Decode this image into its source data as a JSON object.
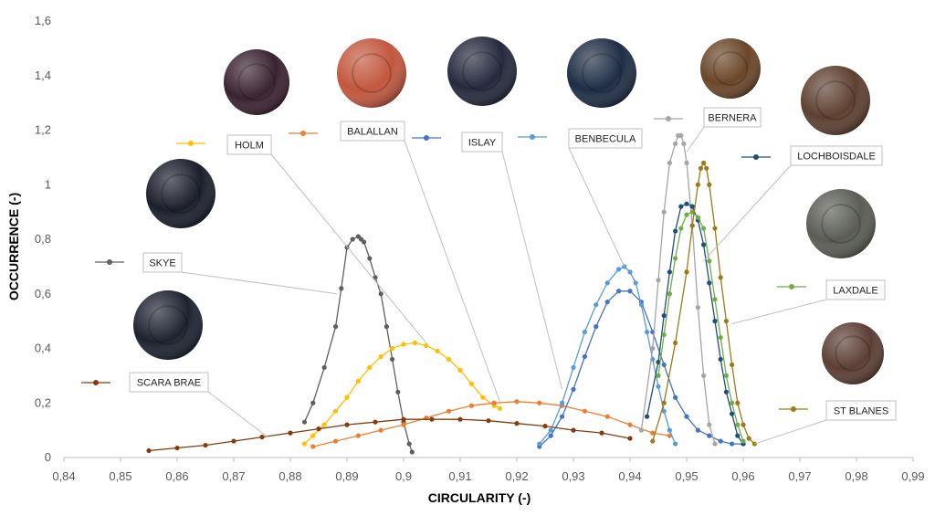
{
  "chart_data": {
    "type": "line",
    "title": "",
    "xlabel": "CIRCULARITY (-)",
    "ylabel": "OCCURRENCE (-)",
    "xlim": [
      0.84,
      0.99
    ],
    "ylim": [
      0,
      1.6
    ],
    "x_ticks": [
      "0,84",
      "0,85",
      "0,86",
      "0,87",
      "0,88",
      "0,89",
      "0,9",
      "0,91",
      "0,92",
      "0,93",
      "0,94",
      "0,95",
      "0,96",
      "0,97",
      "0,98",
      "0,99"
    ],
    "y_ticks": [
      "0",
      "0,2",
      "0,4",
      "0,6",
      "0,8",
      "1",
      "1,2",
      "1,4",
      "1,6"
    ],
    "grid": false,
    "series": [
      {
        "name": "SKYE",
        "color": "#5f5f5f",
        "x": [
          0.8825,
          0.884,
          0.886,
          0.888,
          0.889,
          0.89,
          0.891,
          0.892,
          0.8925,
          0.893,
          0.894,
          0.895,
          0.896,
          0.897,
          0.898,
          0.899,
          0.9,
          0.901,
          0.9015
        ],
        "y": [
          0.13,
          0.2,
          0.33,
          0.48,
          0.62,
          0.77,
          0.8,
          0.81,
          0.8,
          0.79,
          0.73,
          0.66,
          0.6,
          0.48,
          0.36,
          0.24,
          0.13,
          0.05,
          0.02
        ]
      },
      {
        "name": "HOLM",
        "color": "#ffc000",
        "x": [
          0.8825,
          0.884,
          0.886,
          0.888,
          0.89,
          0.892,
          0.894,
          0.896,
          0.898,
          0.9,
          0.902,
          0.904,
          0.906,
          0.908,
          0.91,
          0.912,
          0.914,
          0.916,
          0.917
        ],
        "y": [
          0.05,
          0.08,
          0.12,
          0.17,
          0.22,
          0.28,
          0.33,
          0.37,
          0.4,
          0.415,
          0.42,
          0.41,
          0.39,
          0.36,
          0.32,
          0.27,
          0.22,
          0.19,
          0.18
        ]
      },
      {
        "name": "BALALLAN",
        "color": "#ed7d31",
        "x": [
          0.884,
          0.888,
          0.892,
          0.896,
          0.9,
          0.904,
          0.908,
          0.912,
          0.916,
          0.92,
          0.924,
          0.928,
          0.932,
          0.936,
          0.94,
          0.944,
          0.947
        ],
        "y": [
          0.04,
          0.06,
          0.08,
          0.1,
          0.12,
          0.145,
          0.17,
          0.19,
          0.2,
          0.205,
          0.2,
          0.19,
          0.17,
          0.15,
          0.12,
          0.09,
          0.08
        ]
      },
      {
        "name": "ISLAY",
        "color": "#4472c4",
        "x": [
          0.924,
          0.926,
          0.928,
          0.93,
          0.932,
          0.934,
          0.936,
          0.938,
          0.94,
          0.942,
          0.944,
          0.946,
          0.948,
          0.95,
          0.952,
          0.954,
          0.956,
          0.958,
          0.96
        ],
        "y": [
          0.04,
          0.08,
          0.15,
          0.25,
          0.37,
          0.48,
          0.57,
          0.61,
          0.61,
          0.57,
          0.46,
          0.34,
          0.22,
          0.15,
          0.1,
          0.08,
          0.06,
          0.05,
          0.05
        ]
      },
      {
        "name": "BENBECULA",
        "color": "#5b9bd5",
        "x": [
          0.924,
          0.926,
          0.928,
          0.93,
          0.932,
          0.934,
          0.936,
          0.938,
          0.939,
          0.94,
          0.941,
          0.942,
          0.943,
          0.944,
          0.945,
          0.946,
          0.947,
          0.948
        ],
        "y": [
          0.05,
          0.1,
          0.2,
          0.33,
          0.46,
          0.56,
          0.64,
          0.69,
          0.7,
          0.68,
          0.64,
          0.56,
          0.46,
          0.36,
          0.26,
          0.17,
          0.1,
          0.05
        ]
      },
      {
        "name": "BERNERA",
        "color": "#a5a5a5",
        "x": [
          0.942,
          0.944,
          0.945,
          0.946,
          0.947,
          0.948,
          0.9485,
          0.949,
          0.9495,
          0.95,
          0.951,
          0.952,
          0.953,
          0.954,
          0.955
        ],
        "y": [
          0.1,
          0.4,
          0.65,
          0.9,
          1.08,
          1.15,
          1.18,
          1.18,
          1.15,
          1.08,
          0.85,
          0.55,
          0.3,
          0.12,
          0.05
        ]
      },
      {
        "name": "LOCHBOISDALE",
        "color": "#1f4e79",
        "x": [
          0.943,
          0.945,
          0.946,
          0.947,
          0.948,
          0.949,
          0.95,
          0.951,
          0.952,
          0.953,
          0.954,
          0.955,
          0.956,
          0.957,
          0.958,
          0.959,
          0.96
        ],
        "y": [
          0.15,
          0.35,
          0.52,
          0.68,
          0.83,
          0.92,
          0.93,
          0.92,
          0.87,
          0.78,
          0.64,
          0.5,
          0.36,
          0.24,
          0.16,
          0.08,
          0.05
        ]
      },
      {
        "name": "LAXDALE",
        "color": "#70ad47",
        "x": [
          0.945,
          0.946,
          0.947,
          0.948,
          0.949,
          0.95,
          0.951,
          0.952,
          0.953,
          0.954,
          0.955,
          0.956,
          0.957,
          0.958,
          0.959,
          0.96
        ],
        "y": [
          0.3,
          0.45,
          0.6,
          0.73,
          0.84,
          0.89,
          0.9,
          0.88,
          0.84,
          0.72,
          0.58,
          0.44,
          0.3,
          0.2,
          0.12,
          0.06
        ]
      },
      {
        "name": "ST BLANES",
        "color": "#9c7a1a",
        "x": [
          0.944,
          0.946,
          0.948,
          0.95,
          0.951,
          0.952,
          0.9525,
          0.953,
          0.9535,
          0.954,
          0.955,
          0.956,
          0.957,
          0.958,
          0.959,
          0.96,
          0.961,
          0.962
        ],
        "y": [
          0.06,
          0.2,
          0.42,
          0.68,
          0.85,
          1.0,
          1.06,
          1.08,
          1.06,
          1.0,
          0.84,
          0.66,
          0.5,
          0.34,
          0.2,
          0.12,
          0.07,
          0.05
        ]
      },
      {
        "name": "SCARA BRAE",
        "color": "#843c0c",
        "x": [
          0.855,
          0.86,
          0.865,
          0.87,
          0.875,
          0.88,
          0.885,
          0.89,
          0.895,
          0.9,
          0.905,
          0.91,
          0.915,
          0.92,
          0.925,
          0.93,
          0.935,
          0.94
        ],
        "y": [
          0.025,
          0.035,
          0.045,
          0.06,
          0.075,
          0.09,
          0.105,
          0.12,
          0.13,
          0.14,
          0.14,
          0.14,
          0.135,
          0.125,
          0.115,
          0.1,
          0.09,
          0.07
        ]
      }
    ]
  },
  "legend": [
    {
      "name": "SKYE",
      "color": "#5f5f5f"
    },
    {
      "name": "HOLM",
      "color": "#ffc000"
    },
    {
      "name": "SCARA BRAE",
      "color": "#843c0c"
    },
    {
      "name": "BALALLAN",
      "color": "#ed7d31"
    },
    {
      "name": "ISLAY",
      "color": "#4472c4"
    },
    {
      "name": "BENBECULA",
      "color": "#5b9bd5"
    },
    {
      "name": "BERNERA",
      "color": "#a5a5a5"
    },
    {
      "name": "LOCHBOISDALE",
      "color": "#1f4e79"
    },
    {
      "name": "LAXDALE",
      "color": "#70ad47"
    },
    {
      "name": "ST BLANES",
      "color": "#9c7a1a"
    }
  ],
  "stone_icons": [
    {
      "name": "skye-stone-icon",
      "color": "#1b1e2b"
    },
    {
      "name": "holm-stone-icon",
      "color": "#3a2230"
    },
    {
      "name": "scara-brae-stone-icon",
      "color": "#1e2230"
    },
    {
      "name": "balallan-stone-icon",
      "color": "#c2573e"
    },
    {
      "name": "islay-stone-icon",
      "color": "#26293d"
    },
    {
      "name": "benbecula-stone-icon",
      "color": "#1e2d44"
    },
    {
      "name": "bernera-stone-icon",
      "color": "#6b4628"
    },
    {
      "name": "lochboisdale-stone-icon",
      "color": "#5e4030"
    },
    {
      "name": "laxdale-stone-icon",
      "color": "#5a5c55"
    },
    {
      "name": "st-blanes-stone-icon",
      "color": "#5c3e34"
    }
  ]
}
